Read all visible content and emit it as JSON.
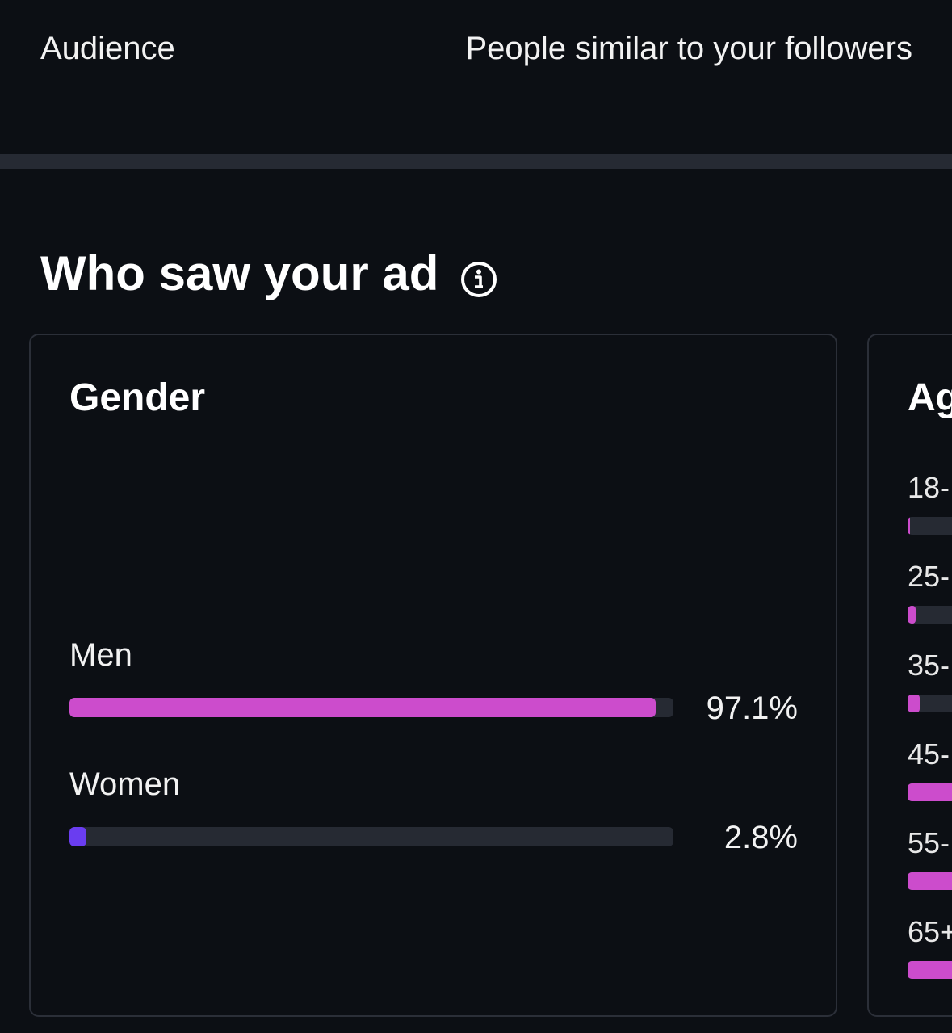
{
  "audience": {
    "label": "Audience",
    "value": "People similar to your followers"
  },
  "section": {
    "title": "Who saw your ad",
    "info_icon": "info-icon"
  },
  "gender": {
    "title": "Gender",
    "rows": [
      {
        "label": "Men",
        "percent_text": "97.1%",
        "fraction": 0.971,
        "color": "#cc4ccc"
      },
      {
        "label": "Women",
        "percent_text": "2.8%",
        "fraction": 0.028,
        "color": "#6a3df0"
      }
    ]
  },
  "age": {
    "title": "Ag",
    "rows": [
      {
        "label": "18-",
        "color": "#cc4ccc"
      },
      {
        "label": "25-",
        "color": "#cc4ccc"
      },
      {
        "label": "35-",
        "color": "#cc4ccc"
      },
      {
        "label": "45-",
        "color": "#cc4ccc"
      },
      {
        "label": "55-",
        "color": "#cc4ccc"
      },
      {
        "label": "65+",
        "color": "#cc4ccc"
      }
    ]
  },
  "colors": {
    "background": "#0c0f14",
    "track": "#262a33",
    "accent_pink": "#cc4ccc",
    "accent_purple": "#6a3df0"
  }
}
